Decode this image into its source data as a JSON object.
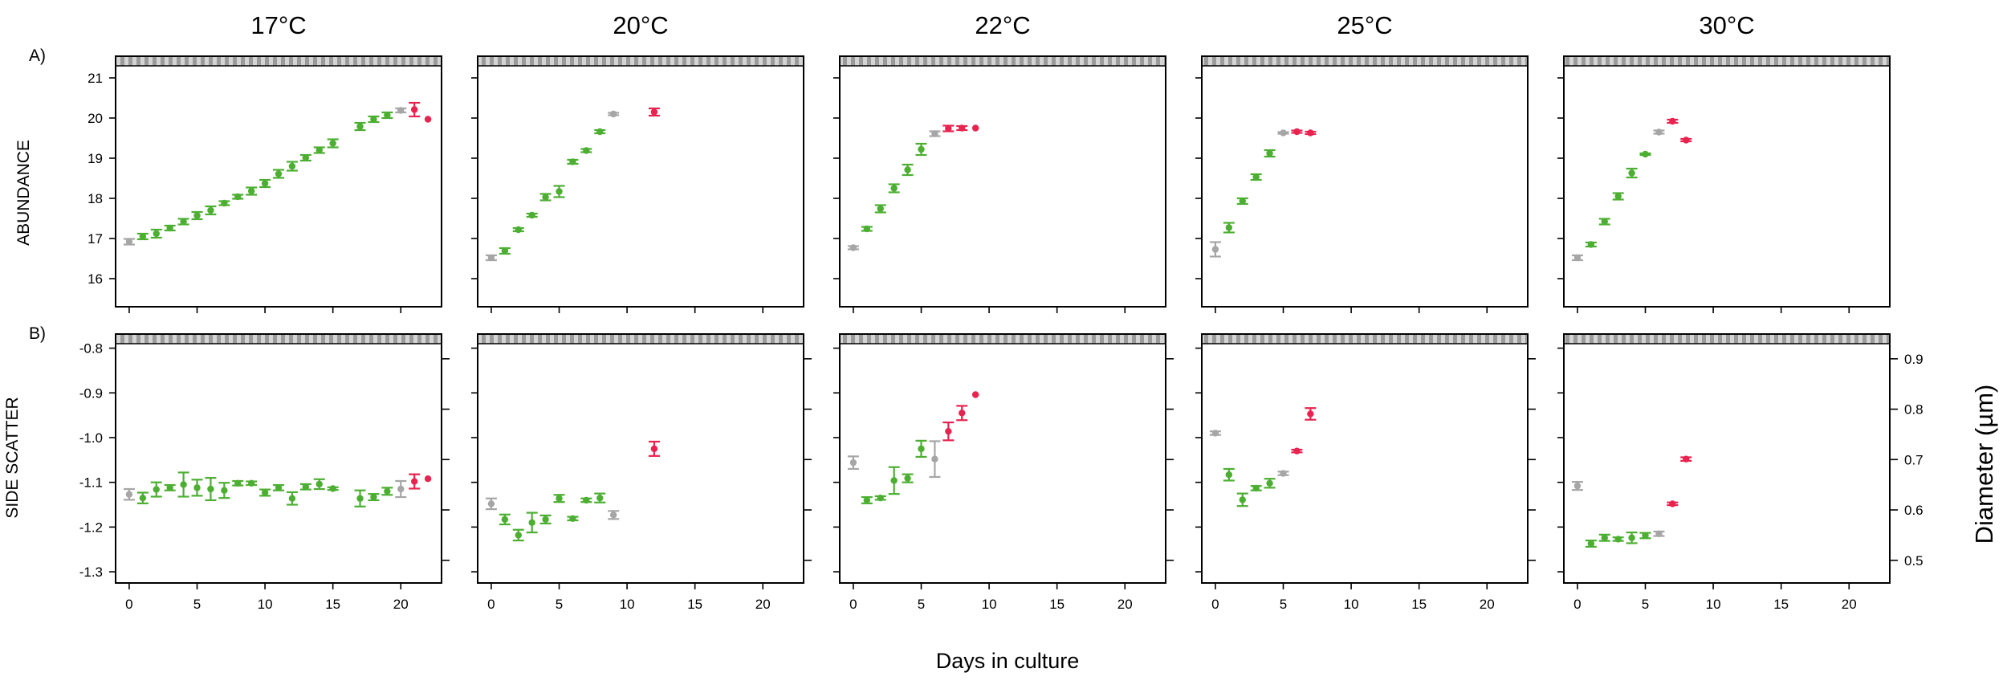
{
  "colors": {
    "green": "#4caf32",
    "gray": "#a6a6a6",
    "red": "#e8234f"
  },
  "row_labels": {
    "a": "A)",
    "b": "B)"
  },
  "ylabels": {
    "a": "ABUNDANCE",
    "b": "SIDE SCATTER"
  },
  "xlabel": "Days in culture",
  "right_label": "Diameter (µm)",
  "chart_data": {
    "type": "scatter",
    "xlim": [
      -1,
      23
    ],
    "xticks": [
      0,
      5,
      10,
      15,
      20
    ],
    "temperatures": [
      "17°C",
      "20°C",
      "22°C",
      "25°C",
      "30°C"
    ],
    "abundance": {
      "ylim": [
        15.3,
        21.3
      ],
      "yticks": [
        16,
        17,
        18,
        19,
        20,
        21
      ],
      "panels": [
        {
          "title": "17°C",
          "points": [
            {
              "x": 0,
              "y": 16.92,
              "e": 0.07,
              "c": "gray"
            },
            {
              "x": 1,
              "y": 17.05,
              "e": 0.07,
              "c": "green"
            },
            {
              "x": 2,
              "y": 17.12,
              "e": 0.1,
              "c": "green"
            },
            {
              "x": 3,
              "y": 17.26,
              "e": 0.06,
              "c": "green"
            },
            {
              "x": 4,
              "y": 17.42,
              "e": 0.07,
              "c": "green"
            },
            {
              "x": 5,
              "y": 17.57,
              "e": 0.09,
              "c": "green"
            },
            {
              "x": 6,
              "y": 17.7,
              "e": 0.1,
              "c": "green"
            },
            {
              "x": 7,
              "y": 17.88,
              "e": 0.05,
              "c": "green"
            },
            {
              "x": 8,
              "y": 18.04,
              "e": 0.05,
              "c": "green"
            },
            {
              "x": 9,
              "y": 18.18,
              "e": 0.09,
              "c": "green"
            },
            {
              "x": 10,
              "y": 18.37,
              "e": 0.09,
              "c": "green"
            },
            {
              "x": 11,
              "y": 18.61,
              "e": 0.1,
              "c": "green"
            },
            {
              "x": 12,
              "y": 18.8,
              "e": 0.11,
              "c": "green"
            },
            {
              "x": 13,
              "y": 19.01,
              "e": 0.07,
              "c": "green"
            },
            {
              "x": 14,
              "y": 19.2,
              "e": 0.07,
              "c": "green"
            },
            {
              "x": 15,
              "y": 19.37,
              "e": 0.1,
              "c": "green"
            },
            {
              "x": 17,
              "y": 19.79,
              "e": 0.09,
              "c": "green"
            },
            {
              "x": 18,
              "y": 19.97,
              "e": 0.07,
              "c": "green"
            },
            {
              "x": 19,
              "y": 20.07,
              "e": 0.07,
              "c": "green"
            },
            {
              "x": 20,
              "y": 20.19,
              "e": 0.05,
              "c": "gray"
            },
            {
              "x": 21,
              "y": 20.21,
              "e": 0.17,
              "c": "red"
            },
            {
              "x": 22,
              "y": 19.97,
              "e": 0.0,
              "c": "red"
            }
          ]
        },
        {
          "title": "20°C",
          "points": [
            {
              "x": 0,
              "y": 16.52,
              "e": 0.06,
              "c": "gray"
            },
            {
              "x": 1,
              "y": 16.69,
              "e": 0.07,
              "c": "green"
            },
            {
              "x": 2,
              "y": 17.22,
              "e": 0.04,
              "c": "green"
            },
            {
              "x": 3,
              "y": 17.58,
              "e": 0.04,
              "c": "green"
            },
            {
              "x": 4,
              "y": 18.03,
              "e": 0.08,
              "c": "green"
            },
            {
              "x": 5,
              "y": 18.17,
              "e": 0.14,
              "c": "green"
            },
            {
              "x": 6,
              "y": 18.91,
              "e": 0.05,
              "c": "green"
            },
            {
              "x": 7,
              "y": 19.19,
              "e": 0.04,
              "c": "green"
            },
            {
              "x": 8,
              "y": 19.66,
              "e": 0.04,
              "c": "green"
            },
            {
              "x": 9,
              "y": 20.1,
              "e": 0.03,
              "c": "gray"
            },
            {
              "x": 12,
              "y": 20.15,
              "e": 0.09,
              "c": "red"
            }
          ]
        },
        {
          "title": "22°C",
          "points": [
            {
              "x": 0,
              "y": 16.77,
              "e": 0.04,
              "c": "gray"
            },
            {
              "x": 1,
              "y": 17.24,
              "e": 0.05,
              "c": "green"
            },
            {
              "x": 2,
              "y": 17.74,
              "e": 0.09,
              "c": "green"
            },
            {
              "x": 3,
              "y": 18.25,
              "e": 0.1,
              "c": "green"
            },
            {
              "x": 4,
              "y": 18.71,
              "e": 0.13,
              "c": "green"
            },
            {
              "x": 5,
              "y": 19.22,
              "e": 0.14,
              "c": "green"
            },
            {
              "x": 6,
              "y": 19.61,
              "e": 0.06,
              "c": "gray"
            },
            {
              "x": 7,
              "y": 19.74,
              "e": 0.07,
              "c": "red"
            },
            {
              "x": 8,
              "y": 19.75,
              "e": 0.05,
              "c": "red"
            },
            {
              "x": 9,
              "y": 19.75,
              "e": 0.0,
              "c": "red"
            }
          ]
        },
        {
          "title": "25°C",
          "points": [
            {
              "x": 0,
              "y": 16.73,
              "e": 0.18,
              "c": "gray"
            },
            {
              "x": 1,
              "y": 17.27,
              "e": 0.12,
              "c": "green"
            },
            {
              "x": 2,
              "y": 17.93,
              "e": 0.07,
              "c": "green"
            },
            {
              "x": 3,
              "y": 18.53,
              "e": 0.07,
              "c": "green"
            },
            {
              "x": 4,
              "y": 19.12,
              "e": 0.08,
              "c": "green"
            },
            {
              "x": 5,
              "y": 19.63,
              "e": 0.02,
              "c": "gray"
            },
            {
              "x": 6,
              "y": 19.66,
              "e": 0.03,
              "c": "red"
            },
            {
              "x": 7,
              "y": 19.63,
              "e": 0.03,
              "c": "red"
            }
          ]
        },
        {
          "title": "30°C",
          "points": [
            {
              "x": 0,
              "y": 16.52,
              "e": 0.06,
              "c": "gray"
            },
            {
              "x": 1,
              "y": 16.85,
              "e": 0.05,
              "c": "green"
            },
            {
              "x": 2,
              "y": 17.42,
              "e": 0.07,
              "c": "green"
            },
            {
              "x": 3,
              "y": 18.05,
              "e": 0.08,
              "c": "green"
            },
            {
              "x": 4,
              "y": 18.63,
              "e": 0.11,
              "c": "green"
            },
            {
              "x": 5,
              "y": 19.1,
              "e": 0.02,
              "c": "green"
            },
            {
              "x": 6,
              "y": 19.65,
              "e": 0.04,
              "c": "gray"
            },
            {
              "x": 7,
              "y": 19.92,
              "e": 0.04,
              "c": "red"
            },
            {
              "x": 8,
              "y": 19.45,
              "e": 0.03,
              "c": "red"
            }
          ]
        }
      ]
    },
    "side_scatter": {
      "ylim": [
        -1.325,
        -0.79
      ],
      "yticks": [
        -0.8,
        -0.9,
        -1.0,
        -1.1,
        -1.2,
        -1.3
      ],
      "ytick_labels": [
        "-0.8",
        "-0.9",
        "-1.0",
        "-1.1",
        "-1.2",
        "-1.3"
      ],
      "right_ylim": [
        0.455,
        0.93
      ],
      "right_yticks": [
        0.5,
        0.6,
        0.7,
        0.8,
        0.9
      ],
      "right_ytick_labels": [
        "0.5",
        "0.6",
        "0.7",
        "0.8",
        "0.9"
      ],
      "panels": [
        {
          "title": "17°C",
          "points": [
            {
              "x": 0,
              "y": -1.127,
              "e": 0.012,
              "c": "gray"
            },
            {
              "x": 1,
              "y": -1.135,
              "e": 0.012,
              "c": "green"
            },
            {
              "x": 2,
              "y": -1.116,
              "e": 0.016,
              "c": "green"
            },
            {
              "x": 3,
              "y": -1.112,
              "e": 0.006,
              "c": "green"
            },
            {
              "x": 4,
              "y": -1.105,
              "e": 0.027,
              "c": "green"
            },
            {
              "x": 5,
              "y": -1.112,
              "e": 0.018,
              "c": "green"
            },
            {
              "x": 6,
              "y": -1.115,
              "e": 0.025,
              "c": "green"
            },
            {
              "x": 7,
              "y": -1.118,
              "e": 0.017,
              "c": "green"
            },
            {
              "x": 8,
              "y": -1.102,
              "e": 0.005,
              "c": "green"
            },
            {
              "x": 9,
              "y": -1.102,
              "e": 0.004,
              "c": "green"
            },
            {
              "x": 10,
              "y": -1.123,
              "e": 0.007,
              "c": "green"
            },
            {
              "x": 11,
              "y": -1.112,
              "e": 0.006,
              "c": "green"
            },
            {
              "x": 12,
              "y": -1.136,
              "e": 0.014,
              "c": "green"
            },
            {
              "x": 13,
              "y": -1.11,
              "e": 0.006,
              "c": "green"
            },
            {
              "x": 14,
              "y": -1.104,
              "e": 0.011,
              "c": "green"
            },
            {
              "x": 15,
              "y": -1.114,
              "e": 0.003,
              "c": "green"
            },
            {
              "x": 17,
              "y": -1.136,
              "e": 0.018,
              "c": "green"
            },
            {
              "x": 18,
              "y": -1.133,
              "e": 0.007,
              "c": "green"
            },
            {
              "x": 19,
              "y": -1.12,
              "e": 0.008,
              "c": "green"
            },
            {
              "x": 20,
              "y": -1.115,
              "e": 0.018,
              "c": "gray"
            },
            {
              "x": 21,
              "y": -1.098,
              "e": 0.016,
              "c": "red"
            },
            {
              "x": 22,
              "y": -1.092,
              "e": 0.0,
              "c": "red"
            }
          ]
        },
        {
          "title": "20°C",
          "points": [
            {
              "x": 0,
              "y": -1.148,
              "e": 0.012,
              "c": "gray"
            },
            {
              "x": 1,
              "y": -1.183,
              "e": 0.011,
              "c": "green"
            },
            {
              "x": 2,
              "y": -1.218,
              "e": 0.012,
              "c": "green"
            },
            {
              "x": 3,
              "y": -1.19,
              "e": 0.022,
              "c": "green"
            },
            {
              "x": 4,
              "y": -1.183,
              "e": 0.009,
              "c": "green"
            },
            {
              "x": 5,
              "y": -1.136,
              "e": 0.008,
              "c": "green"
            },
            {
              "x": 6,
              "y": -1.181,
              "e": 0.004,
              "c": "green"
            },
            {
              "x": 7,
              "y": -1.14,
              "e": 0.004,
              "c": "green"
            },
            {
              "x": 8,
              "y": -1.135,
              "e": 0.01,
              "c": "green"
            },
            {
              "x": 9,
              "y": -1.173,
              "e": 0.009,
              "c": "gray"
            },
            {
              "x": 12,
              "y": -1.025,
              "e": 0.016,
              "c": "red"
            }
          ]
        },
        {
          "title": "22°C",
          "points": [
            {
              "x": 0,
              "y": -1.056,
              "e": 0.014,
              "c": "gray"
            },
            {
              "x": 1,
              "y": -1.14,
              "e": 0.007,
              "c": "green"
            },
            {
              "x": 2,
              "y": -1.135,
              "e": 0.004,
              "c": "green"
            },
            {
              "x": 3,
              "y": -1.096,
              "e": 0.03,
              "c": "green"
            },
            {
              "x": 4,
              "y": -1.091,
              "e": 0.009,
              "c": "green"
            },
            {
              "x": 5,
              "y": -1.025,
              "e": 0.018,
              "c": "green"
            },
            {
              "x": 6,
              "y": -1.048,
              "e": 0.04,
              "c": "gray"
            },
            {
              "x": 7,
              "y": -0.986,
              "e": 0.02,
              "c": "red"
            },
            {
              "x": 8,
              "y": -0.945,
              "e": 0.016,
              "c": "red"
            },
            {
              "x": 9,
              "y": -0.904,
              "e": 0.0,
              "c": "red"
            }
          ]
        },
        {
          "title": "25°C",
          "points": [
            {
              "x": 0,
              "y": -0.99,
              "e": 0.004,
              "c": "gray"
            },
            {
              "x": 1,
              "y": -1.083,
              "e": 0.013,
              "c": "green"
            },
            {
              "x": 2,
              "y": -1.139,
              "e": 0.014,
              "c": "green"
            },
            {
              "x": 3,
              "y": -1.113,
              "e": 0.005,
              "c": "green"
            },
            {
              "x": 4,
              "y": -1.102,
              "e": 0.01,
              "c": "green"
            },
            {
              "x": 5,
              "y": -1.08,
              "e": 0.004,
              "c": "gray"
            },
            {
              "x": 6,
              "y": -1.03,
              "e": 0.003,
              "c": "red"
            },
            {
              "x": 7,
              "y": -0.947,
              "e": 0.013,
              "c": "red"
            }
          ]
        },
        {
          "title": "30°C",
          "points": [
            {
              "x": 0,
              "y": -1.108,
              "e": 0.009,
              "c": "gray"
            },
            {
              "x": 1,
              "y": -1.237,
              "e": 0.007,
              "c": "green"
            },
            {
              "x": 2,
              "y": -1.224,
              "e": 0.007,
              "c": "green"
            },
            {
              "x": 3,
              "y": -1.227,
              "e": 0.004,
              "c": "green"
            },
            {
              "x": 4,
              "y": -1.224,
              "e": 0.012,
              "c": "green"
            },
            {
              "x": 5,
              "y": -1.219,
              "e": 0.006,
              "c": "green"
            },
            {
              "x": 6,
              "y": -1.215,
              "e": 0.005,
              "c": "gray"
            },
            {
              "x": 7,
              "y": -1.148,
              "e": 0.003,
              "c": "red"
            },
            {
              "x": 8,
              "y": -1.048,
              "e": 0.004,
              "c": "red"
            }
          ]
        }
      ]
    }
  }
}
